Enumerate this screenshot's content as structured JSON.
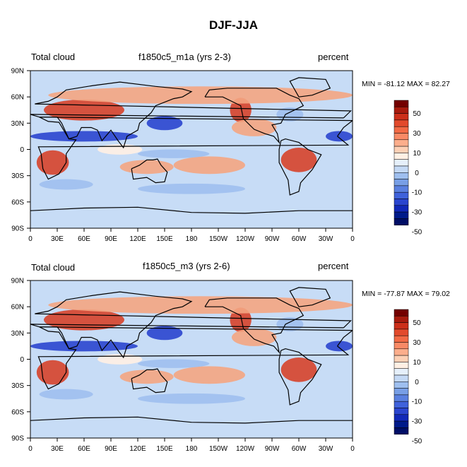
{
  "title": "DJF-JJA",
  "chart_data": [
    {
      "type": "heatmap",
      "left_label": "Total cloud",
      "center_label": "f1850c5_m1a (yrs 2-3)",
      "right_label": "percent",
      "stats": "MIN = -81.12 MAX =  82.27",
      "min": -81.12,
      "max": 82.27,
      "xlim": [
        0,
        360
      ],
      "ylim": [
        -90,
        90
      ],
      "x_ticks": [
        "0",
        "30E",
        "60E",
        "90E",
        "120E",
        "150E",
        "180",
        "150W",
        "120W",
        "90W",
        "60W",
        "30W",
        "0"
      ],
      "y_ticks": [
        "90N",
        "60N",
        "30N",
        "0",
        "30S",
        "60S",
        "90S"
      ],
      "colorbar_labels": [
        "50",
        "30",
        "10",
        "0",
        "-10",
        "-30",
        "-50"
      ]
    },
    {
      "type": "heatmap",
      "left_label": "Total cloud",
      "center_label": "f1850c5_m3 (yrs 2-6)",
      "right_label": "percent",
      "stats": "MIN = -77.87 MAX =  79.02",
      "min": -77.87,
      "max": 79.02,
      "xlim": [
        0,
        360
      ],
      "ylim": [
        -90,
        90
      ],
      "x_ticks": [
        "0",
        "30E",
        "60E",
        "90E",
        "120E",
        "150E",
        "180",
        "150W",
        "120W",
        "90W",
        "60W",
        "30W",
        "0"
      ],
      "y_ticks": [
        "90N",
        "60N",
        "30N",
        "0",
        "30S",
        "60S",
        "90S"
      ],
      "colorbar_labels": [
        "50",
        "30",
        "10",
        "0",
        "-10",
        "-30",
        "-50"
      ]
    }
  ],
  "colorbar_colors": [
    "#730000",
    "#a81b0e",
    "#cc2f1a",
    "#e24a2c",
    "#f26a45",
    "#f98a66",
    "#fcae8c",
    "#fdd0b5",
    "#fff0e4",
    "#e6f0fb",
    "#c4d9f5",
    "#9ebfef",
    "#789fe6",
    "#5a80e0",
    "#3f62db",
    "#2a45cf",
    "#1128b8",
    "#001a8a",
    "#000e66"
  ],
  "data_fill_colors": {
    "land": "#f4a582",
    "ocean": "#c7dcf6",
    "dry_band": "#2a45cf",
    "deep_warm": "#d6432b",
    "pale_neutral": "#fff0e4"
  }
}
